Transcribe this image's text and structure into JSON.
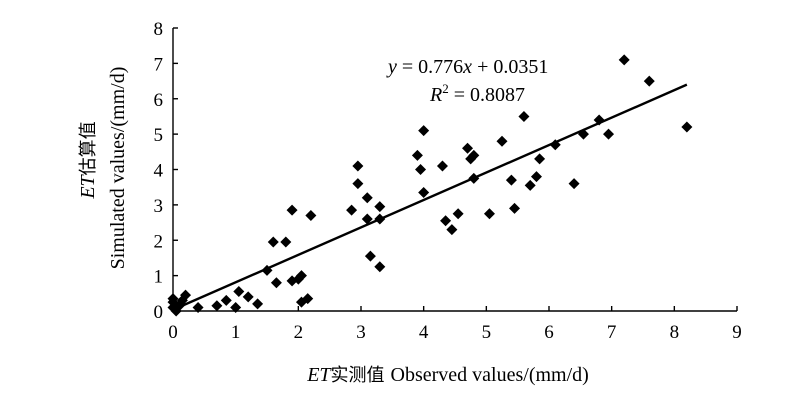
{
  "chart_data": {
    "type": "scatter",
    "xlabel_italic": "ET",
    "xlabel_cjk": "实测值",
    "xlabel_en": "Observed values/(mm/d)",
    "ylabel_italic": "ET",
    "ylabel_cjk": "估算值",
    "ylabel_en": "Simulated values/(mm/d)",
    "xlim": [
      0,
      9
    ],
    "ylim": [
      0,
      8
    ],
    "xticks": [
      "0",
      "1",
      "2",
      "3",
      "4",
      "5",
      "6",
      "7",
      "8",
      "9"
    ],
    "yticks": [
      "0",
      "1",
      "2",
      "3",
      "4",
      "5",
      "6",
      "7",
      "8"
    ],
    "grid": false,
    "marker": "diamond",
    "color": "#000000",
    "points": [
      [
        0.0,
        0.1
      ],
      [
        0.0,
        0.25
      ],
      [
        0.0,
        0.35
      ],
      [
        0.05,
        0.0
      ],
      [
        0.1,
        0.15
      ],
      [
        0.15,
        0.3
      ],
      [
        0.2,
        0.45
      ],
      [
        0.4,
        0.1
      ],
      [
        0.7,
        0.15
      ],
      [
        0.85,
        0.3
      ],
      [
        1.0,
        0.1
      ],
      [
        1.05,
        0.55
      ],
      [
        1.2,
        0.4
      ],
      [
        1.35,
        0.2
      ],
      [
        1.5,
        1.15
      ],
      [
        1.6,
        1.95
      ],
      [
        1.65,
        0.8
      ],
      [
        1.8,
        1.95
      ],
      [
        1.9,
        0.85
      ],
      [
        1.9,
        2.85
      ],
      [
        2.0,
        0.9
      ],
      [
        2.05,
        1.0
      ],
      [
        2.05,
        0.25
      ],
      [
        2.15,
        0.35
      ],
      [
        2.2,
        2.7
      ],
      [
        2.85,
        2.85
      ],
      [
        2.95,
        3.6
      ],
      [
        2.95,
        4.1
      ],
      [
        3.1,
        2.6
      ],
      [
        3.1,
        3.2
      ],
      [
        3.15,
        1.55
      ],
      [
        3.3,
        2.6
      ],
      [
        3.3,
        2.95
      ],
      [
        3.3,
        1.25
      ],
      [
        3.9,
        4.4
      ],
      [
        3.95,
        4.0
      ],
      [
        4.0,
        3.35
      ],
      [
        4.0,
        5.1
      ],
      [
        4.3,
        4.1
      ],
      [
        4.35,
        2.55
      ],
      [
        4.45,
        2.3
      ],
      [
        4.55,
        2.75
      ],
      [
        4.7,
        4.6
      ],
      [
        4.75,
        4.3
      ],
      [
        4.8,
        4.4
      ],
      [
        4.8,
        3.75
      ],
      [
        5.05,
        2.75
      ],
      [
        5.25,
        4.8
      ],
      [
        5.4,
        3.7
      ],
      [
        5.45,
        2.9
      ],
      [
        5.6,
        5.5
      ],
      [
        5.7,
        3.55
      ],
      [
        5.8,
        3.8
      ],
      [
        5.85,
        4.3
      ],
      [
        6.1,
        4.7
      ],
      [
        6.4,
        3.6
      ],
      [
        6.55,
        5.0
      ],
      [
        6.8,
        5.4
      ],
      [
        6.95,
        5.0
      ],
      [
        7.2,
        7.1
      ],
      [
        7.6,
        6.5
      ],
      [
        8.2,
        5.2
      ]
    ],
    "fit": {
      "slope": 0.776,
      "intercept": 0.0351,
      "x_range": [
        0,
        8.2
      ]
    },
    "equation_prefix": "y",
    "equation_mid": " = 0.776",
    "equation_var": "x",
    "equation_suffix": " + 0.0351",
    "r2_label": "R",
    "r2_power": "2",
    "r2_value": " = 0.8087"
  }
}
